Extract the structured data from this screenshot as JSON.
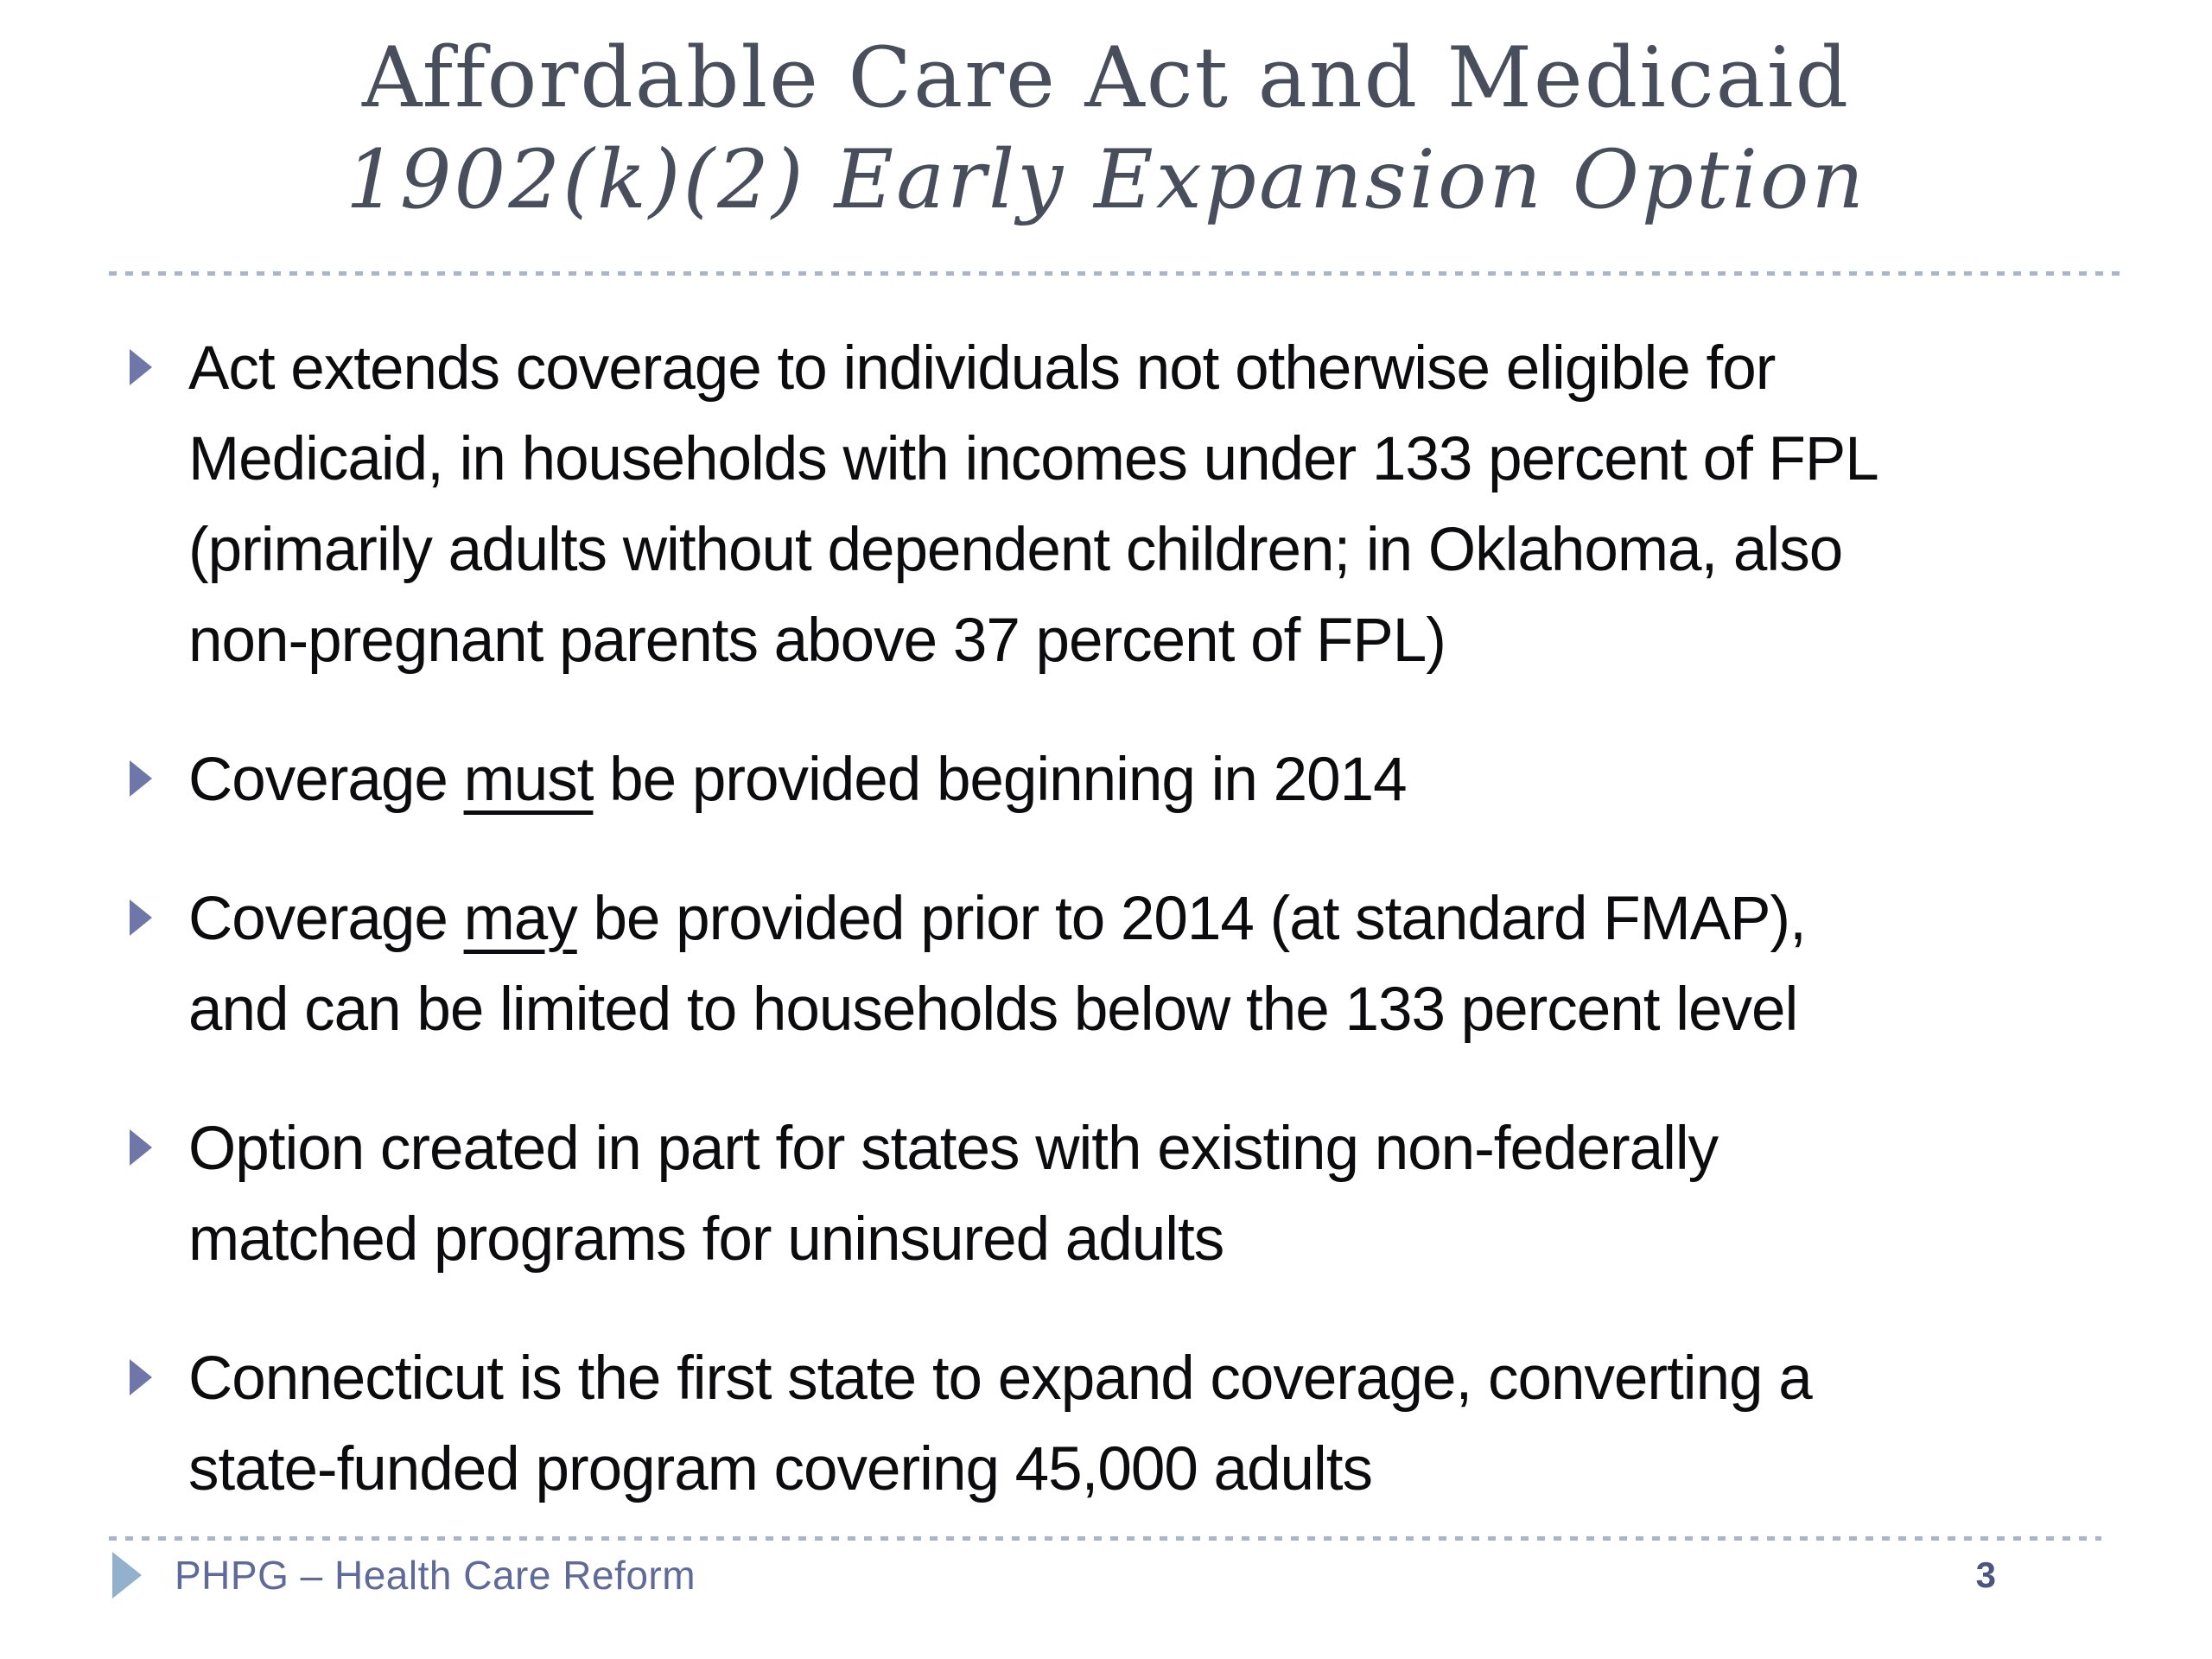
{
  "slide": {
    "title_line1": "Affordable Care Act and Medicaid",
    "title_line2": "1902(k)(2) Early Expansion Option"
  },
  "bullets": [
    {
      "pre": "Act extends coverage to individuals not otherwise eligible for\nMedicaid, in households with incomes under 133 percent of FPL\n(primarily adults without dependent children; in Oklahoma, also\nnon-pregnant parents above 37 percent of FPL)",
      "underlined": "",
      "post": ""
    },
    {
      "pre": "Coverage ",
      "underlined": "must",
      "post": " be provided beginning in 2014"
    },
    {
      "pre": "Coverage ",
      "underlined": "may",
      "post": " be provided prior to 2014 (at standard FMAP),\nand can be limited to households below the 133 percent level"
    },
    {
      "pre": "Option created in part for states with existing non-federally\nmatched programs for uninsured adults",
      "underlined": "",
      "post": ""
    },
    {
      "pre": "Connecticut is the first state to expand coverage, converting a\nstate-funded program covering 45,000 adults",
      "underlined": "",
      "post": ""
    }
  ],
  "footer": {
    "label": "PHPG – Health Care Reform",
    "page_number": "3"
  },
  "icons": {
    "bullet_marker": "right-triangle-icon",
    "footer_marker": "right-triangle-icon"
  },
  "colors": {
    "title_text": "#484e5c",
    "body_text": "#0c0c0e",
    "bullet_arrow": "#6e77a8",
    "footer_arrow": "#92b1cc",
    "footer_text": "#5e6b9a",
    "page_number": "#4d5480",
    "dashed_line": "#a9b5c9",
    "background": "#ffffff"
  }
}
